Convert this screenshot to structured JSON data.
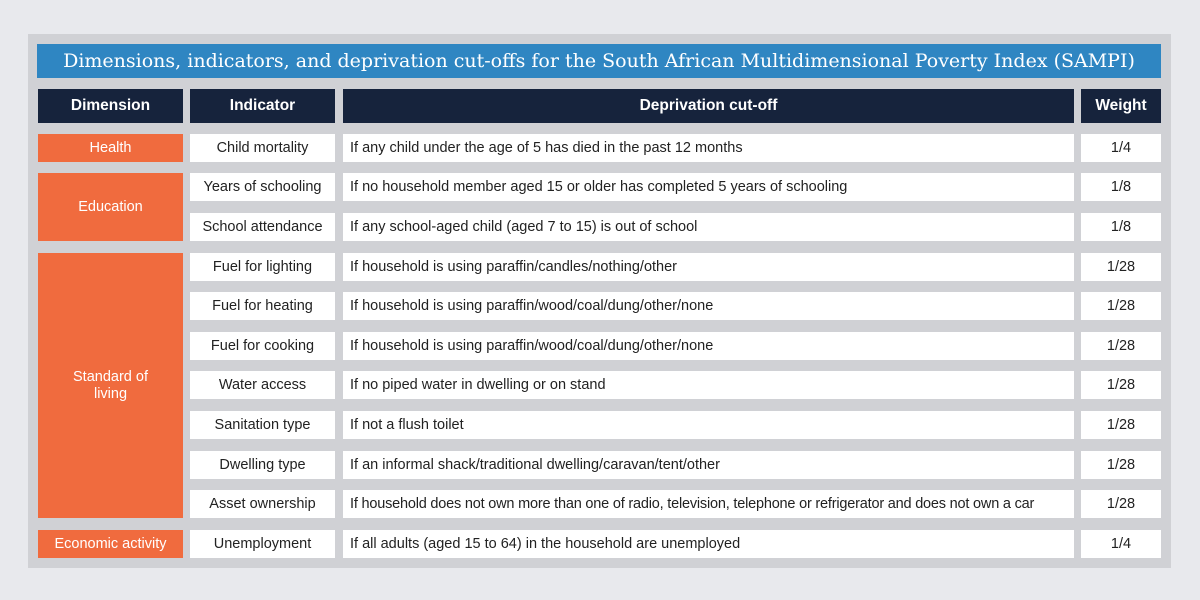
{
  "title": "Dimensions, indicators, and deprivation cut-offs for the South African Multidimensional Poverty Index (SAMPI)",
  "headers": {
    "dimension": "Dimension",
    "indicator": "Indicator",
    "cutoff": "Deprivation cut-off",
    "weight": "Weight"
  },
  "dimensions": {
    "health": "Health",
    "education": "Education",
    "standard_of_living": "Standard of living",
    "economic_activity": "Economic activity"
  },
  "rows": [
    {
      "indicator": "Child mortality",
      "cutoff": "If any child under the age of 5 has died in the past 12 months",
      "weight": "1/4"
    },
    {
      "indicator": "Years of schooling",
      "cutoff": "If no household member aged 15 or older has completed 5 years of schooling",
      "weight": "1/8"
    },
    {
      "indicator": "School attendance",
      "cutoff": "If any school-aged child (aged 7 to 15) is out of school",
      "weight": "1/8"
    },
    {
      "indicator": "Fuel for lighting",
      "cutoff": "If household is using paraffin/candles/nothing/other",
      "weight": "1/28"
    },
    {
      "indicator": "Fuel for heating",
      "cutoff": "If household is using paraffin/wood/coal/dung/other/none",
      "weight": "1/28"
    },
    {
      "indicator": "Fuel for cooking",
      "cutoff": "If household is using paraffin/wood/coal/dung/other/none",
      "weight": "1/28"
    },
    {
      "indicator": "Water access",
      "cutoff": "If no piped water in dwelling or on stand",
      "weight": "1/28"
    },
    {
      "indicator": "Sanitation type",
      "cutoff": "If not a flush toilet",
      "weight": "1/28"
    },
    {
      "indicator": "Dwelling type",
      "cutoff": "If an informal shack/traditional dwelling/caravan/tent/other",
      "weight": "1/28"
    },
    {
      "indicator": "Asset ownership",
      "cutoff": "If household does not own more than one of radio, television, telephone or refrigerator and does not own a car",
      "weight": "1/28"
    },
    {
      "indicator": "Unemployment",
      "cutoff": "If all adults (aged 15 to 64) in the household are unemployed",
      "weight": "1/4"
    }
  ],
  "colors": {
    "title_bg": "#2f86c2",
    "header_bg": "#16233c",
    "dimension_bg": "#f06b3e",
    "panel_bg": "#d0d1d5",
    "page_bg": "#e8e9ed"
  }
}
